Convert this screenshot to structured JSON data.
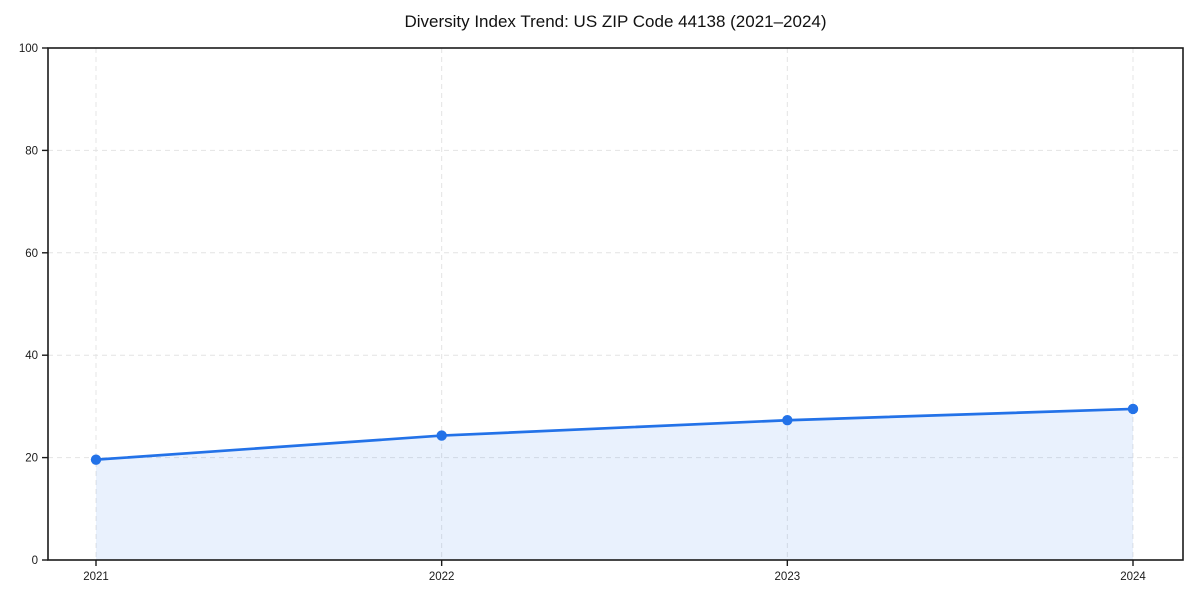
{
  "page": {
    "background_color": "#ffffff",
    "text_color": "#1a1a1a"
  },
  "chart_data": {
    "type": "line",
    "title": "Diversity Index Trend: US ZIP Code 44138 (2021–2024)",
    "categories": [
      "2021",
      "2022",
      "2023",
      "2024"
    ],
    "series": [
      {
        "name": "Diversity Index",
        "values": [
          19.6,
          24.3,
          27.3,
          29.5
        ]
      }
    ],
    "xlabel": "",
    "ylabel": "",
    "ylim": [
      0,
      100
    ],
    "yticks": [
      0,
      20,
      40,
      60,
      80,
      100
    ],
    "grid": "dashed both axes, light gray",
    "legend": "none",
    "area_fill": true,
    "marker": "circle",
    "colors": {
      "line": "#2372e8",
      "marker": "#2372e8",
      "area_fill": "rgba(35,114,232,0.10)",
      "gridline": "#e4e4e4",
      "spine": "#1a1a1a",
      "tick_label": "#1a1a1a"
    }
  }
}
